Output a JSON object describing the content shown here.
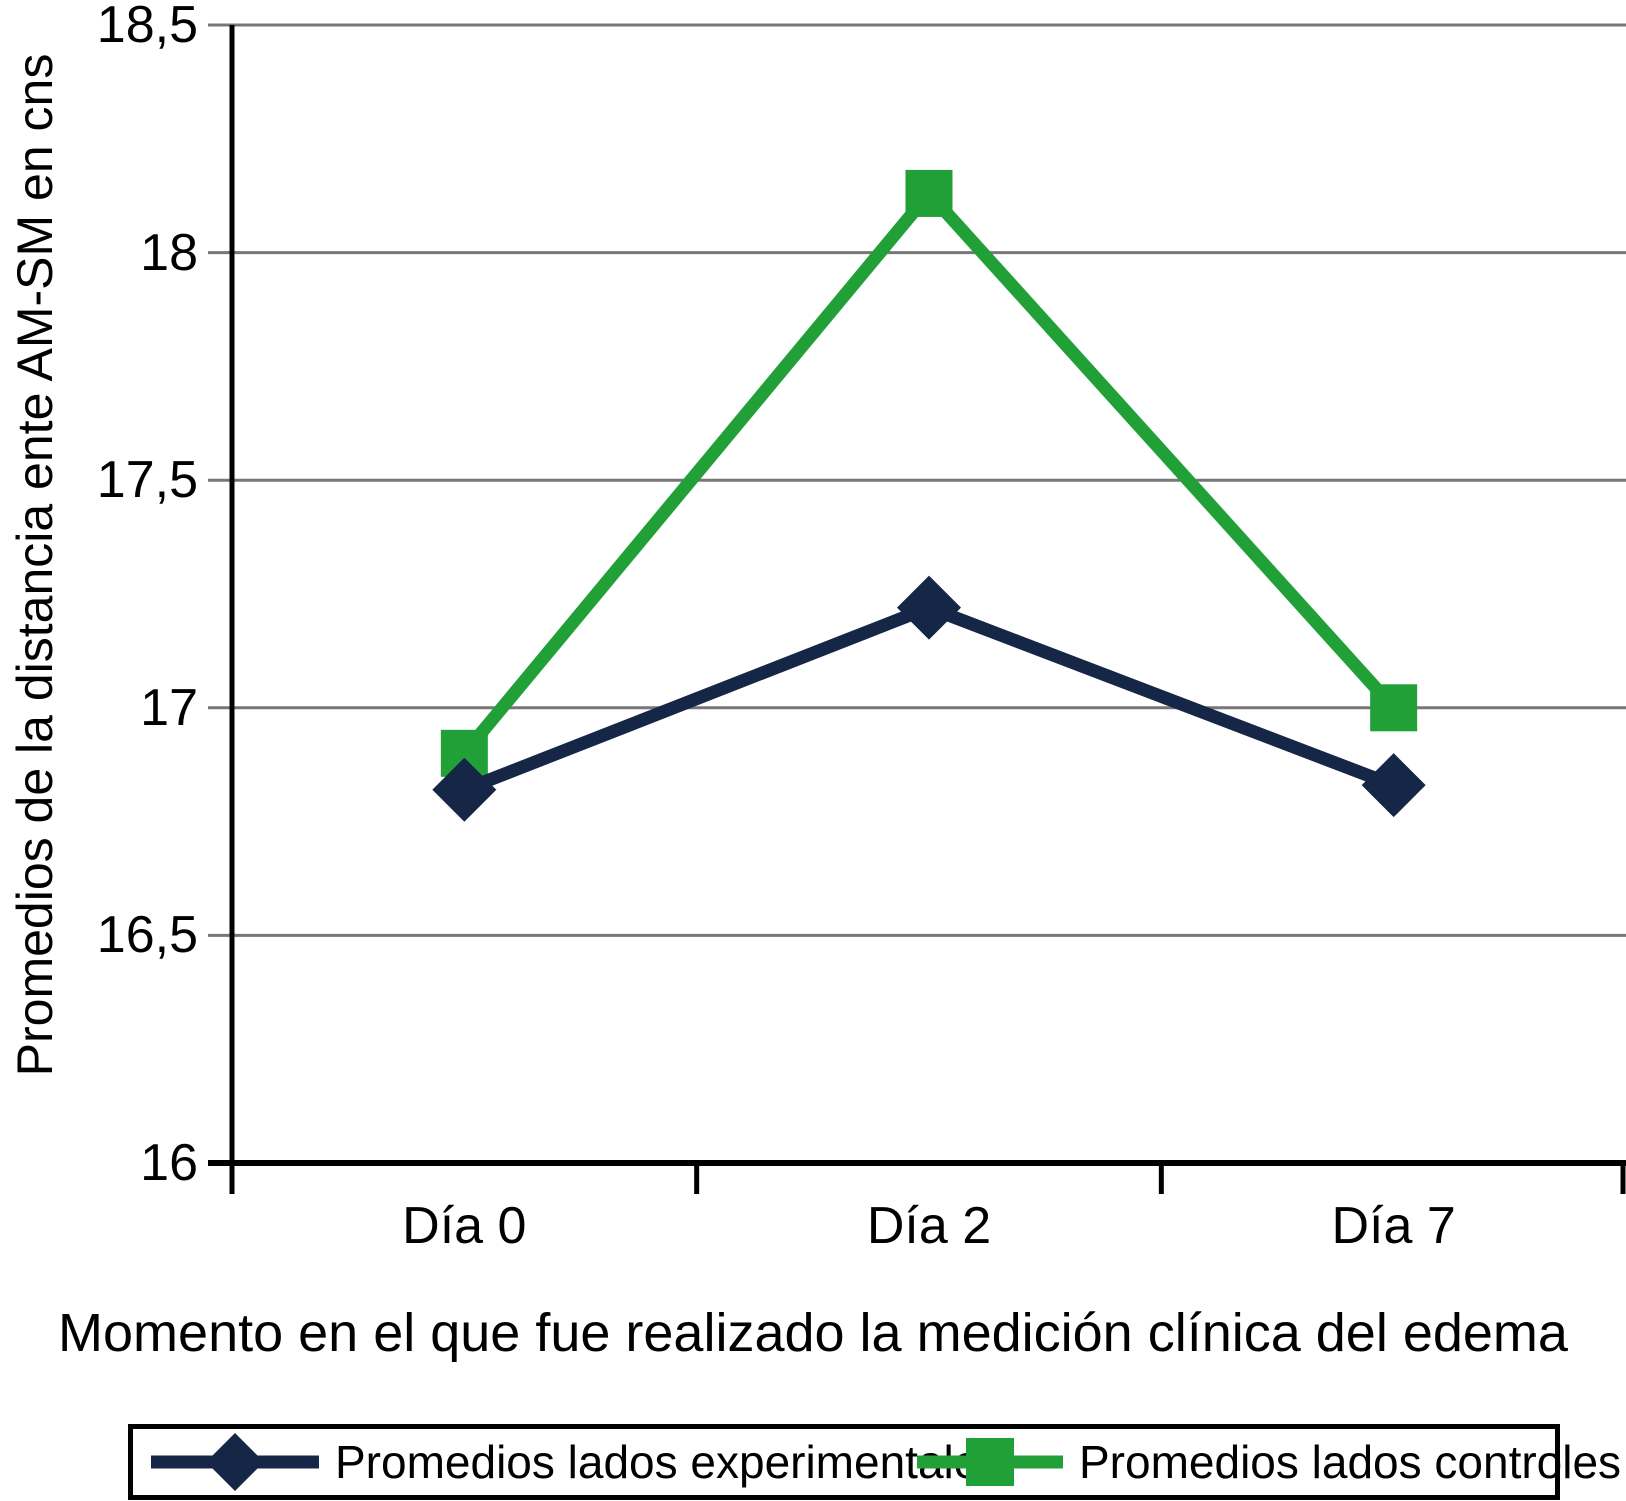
{
  "chart_data": {
    "type": "line",
    "categories": [
      "Día 0",
      "Día 2",
      "Día 7"
    ],
    "series": [
      {
        "name": "Promedios lados experimentales",
        "values": [
          16.82,
          17.22,
          16.83
        ],
        "color": "#152647",
        "marker": "diamond"
      },
      {
        "name": "Promedios lados controles",
        "values": [
          16.9,
          18.13,
          17.0
        ],
        "color": "#21A038",
        "marker": "square"
      }
    ],
    "title": "",
    "xlabel": "Momento en el que fue realizado la medición clínica del edema",
    "ylabel": "Promedios de la distancia ente AM-SM en cns",
    "ylim": [
      16,
      18.5
    ],
    "ytick_values": [
      16,
      16.5,
      17,
      17.5,
      18,
      18.5
    ],
    "ytick_labels": [
      "16",
      "16,5",
      "17",
      "17,5",
      "18",
      "18,5"
    ],
    "grid": true,
    "gridline_color": "#777777",
    "axis_color": "#000000",
    "legend_position": "bottom"
  }
}
